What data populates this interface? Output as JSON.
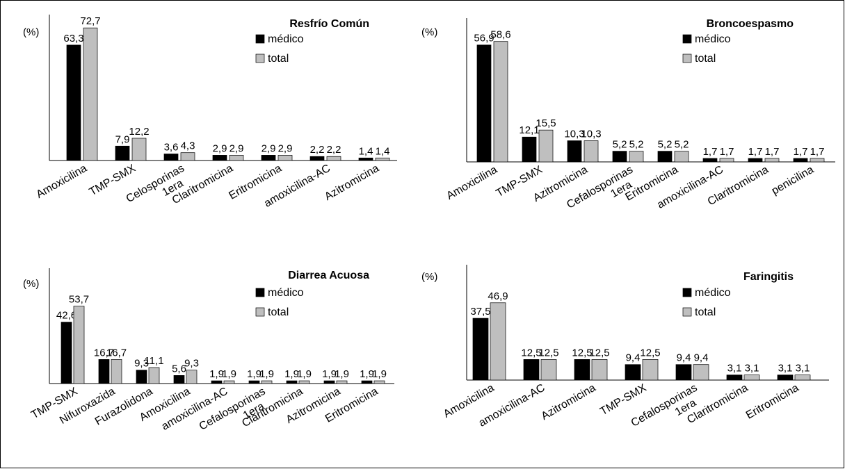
{
  "y_unit": "(%)",
  "colors": {
    "medico": "#000000",
    "total": "#bfbfbf"
  },
  "chart_data": [
    {
      "type": "bar",
      "title": "Resfrío Común",
      "ylabel": "(%)",
      "ylim": [
        0,
        80
      ],
      "legend": "top-right",
      "categories": [
        [
          "Amoxicilina"
        ],
        [
          "TMP-SMX"
        ],
        [
          "Celosporinas",
          "1era"
        ],
        [
          "Claritromicina"
        ],
        [
          "Eritromicina"
        ],
        [
          "amoxicilina-AC"
        ],
        [
          "Azitromicina"
        ]
      ],
      "series": [
        {
          "name": "médico",
          "values": [
            63.3,
            7.9,
            3.6,
            2.9,
            2.9,
            2.2,
            1.4
          ],
          "labels": [
            "63,3",
            "7,9",
            "3,6",
            "2,9",
            "2,9",
            "2,2",
            "1,4"
          ]
        },
        {
          "name": "total",
          "values": [
            72.7,
            12.2,
            4.3,
            2.9,
            2.9,
            2.2,
            1.4
          ],
          "labels": [
            "72,7",
            "12,2",
            "4,3",
            "2,9",
            "2,9",
            "2,2",
            "1,4"
          ]
        }
      ]
    },
    {
      "type": "bar",
      "title": "Broncoespasmo",
      "ylabel": "(%)",
      "ylim": [
        0,
        70
      ],
      "legend": "top-right",
      "categories": [
        [
          "Amoxicilina"
        ],
        [
          "TMP-SMX"
        ],
        [
          "Azitromicina"
        ],
        [
          "Cefalosporinas",
          "1era"
        ],
        [
          "Eritromicina"
        ],
        [
          "amoxicilina-AC"
        ],
        [
          "Claritromicina"
        ],
        [
          "penicilina"
        ]
      ],
      "series": [
        {
          "name": "médico",
          "values": [
            56.9,
            12.1,
            10.3,
            5.2,
            5.2,
            1.7,
            1.7,
            1.7
          ],
          "labels": [
            "56,9",
            "12,1",
            "10,3",
            "5,2",
            "5,2",
            "1,7",
            "1,7",
            "1,7"
          ]
        },
        {
          "name": "total",
          "values": [
            58.6,
            15.5,
            10.3,
            5.2,
            5.2,
            1.7,
            1.7,
            1.7
          ],
          "labels": [
            "58,6",
            "15,5",
            "10,3",
            "5,2",
            "5,2",
            "1,7",
            "1,7",
            "1,7"
          ]
        }
      ]
    },
    {
      "type": "bar",
      "title": "Diarrea Acuosa",
      "ylabel": "(%)",
      "ylim": [
        0,
        80
      ],
      "legend": "top-right",
      "categories": [
        [
          "TMP-SMX"
        ],
        [
          "Nifuroxazida"
        ],
        [
          "Furazolidona"
        ],
        [
          "Amoxicilina"
        ],
        [
          "amoxicilina-AC"
        ],
        [
          "Cefalosporinas",
          "1era"
        ],
        [
          "Claritromicina"
        ],
        [
          "Azitromicina"
        ],
        [
          "Eritromicina"
        ]
      ],
      "series": [
        {
          "name": "médico",
          "values": [
            42.6,
            16.7,
            9.3,
            5.6,
            1.9,
            1.9,
            1.9,
            1.9,
            1.9
          ],
          "labels": [
            "42,6",
            "16,7",
            "9,3",
            "5,6",
            "1,9",
            "1,9",
            "1,9",
            "1,9",
            "1,9"
          ]
        },
        {
          "name": "total",
          "values": [
            53.7,
            16.7,
            11.1,
            9.3,
            1.9,
            1.9,
            1.9,
            1.9,
            1.9
          ],
          "labels": [
            "53,7",
            "16,7",
            "11,1",
            "9,3",
            "1,9",
            "1,9",
            "1,9",
            "1,9",
            "1,9"
          ]
        }
      ]
    },
    {
      "type": "bar",
      "title": "Faringitis",
      "ylabel": "(%)",
      "ylim": [
        0,
        70
      ],
      "legend": "top-right",
      "categories": [
        [
          "Amoxicilina"
        ],
        [
          "amoxicilina-AC"
        ],
        [
          "Azitromicina"
        ],
        [
          "TMP-SMX"
        ],
        [
          "Cefalosporinas",
          "1era"
        ],
        [
          "Claritromicina"
        ],
        [
          "Eritromicina"
        ]
      ],
      "series": [
        {
          "name": "médico",
          "values": [
            37.5,
            12.5,
            12.5,
            9.4,
            9.4,
            3.1,
            3.1
          ],
          "labels": [
            "37,5",
            "12,5",
            "12,5",
            "9,4",
            "9,4",
            "3,1",
            "3,1"
          ]
        },
        {
          "name": "total",
          "values": [
            46.9,
            12.5,
            12.5,
            12.5,
            9.4,
            3.1,
            3.1
          ],
          "labels": [
            "46,9",
            "12,5",
            "12,5",
            "12,5",
            "9,4",
            "3,1",
            "3,1"
          ]
        }
      ]
    }
  ]
}
